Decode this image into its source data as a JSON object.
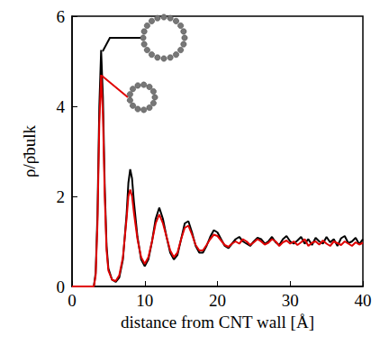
{
  "chart_data": {
    "type": "line",
    "x_label": "distance from CNT wall [Å]",
    "y_label": "ρ/ρ̄bulk",
    "x": [
      0,
      1,
      2,
      3,
      3.25,
      3.5,
      3.75,
      4,
      4.25,
      4.5,
      4.75,
      5,
      5.5,
      6,
      6.5,
      7,
      7.5,
      7.75,
      8,
      8.25,
      8.5,
      9,
      9.5,
      10,
      10.5,
      11,
      11.5,
      12,
      12.5,
      13,
      13.5,
      14,
      14.5,
      15,
      15.5,
      16,
      16.5,
      17,
      17.5,
      18,
      18.5,
      19,
      19.5,
      20,
      20.5,
      21,
      21.5,
      22,
      22.5,
      23,
      23.5,
      24,
      24.5,
      25,
      25.5,
      26,
      26.5,
      27,
      27.5,
      28,
      28.5,
      29,
      29.5,
      30,
      30.5,
      31,
      31.5,
      32,
      32.5,
      33,
      33.5,
      34,
      34.5,
      35,
      35.5,
      36,
      36.5,
      37,
      37.5,
      38,
      38.5,
      39,
      39.5,
      40
    ],
    "series": [
      {
        "color": "#000000",
        "values": [
          0,
          0,
          0,
          0,
          0.3,
          1.6,
          4.0,
          5.25,
          4.2,
          2.2,
          0.9,
          0.4,
          0.15,
          0.1,
          0.2,
          0.6,
          1.6,
          2.3,
          2.6,
          2.4,
          1.9,
          1.1,
          0.6,
          0.45,
          0.6,
          1.0,
          1.5,
          1.75,
          1.5,
          1.1,
          0.75,
          0.6,
          0.7,
          1.05,
          1.4,
          1.45,
          1.2,
          0.9,
          0.75,
          0.75,
          0.9,
          1.1,
          1.25,
          1.2,
          1.05,
          0.9,
          0.85,
          0.95,
          1.05,
          1.1,
          1.0,
          0.95,
          0.9,
          1.0,
          1.08,
          1.05,
          0.95,
          1.0,
          1.1,
          0.98,
          0.92,
          1.05,
          1.12,
          1.0,
          0.95,
          1.02,
          1.1,
          0.95,
          1.05,
          0.92,
          1.08,
          1.0,
          0.95,
          1.1,
          0.98,
          1.05,
          0.9,
          1.07,
          1.12,
          0.96,
          1.0,
          1.08,
          0.94,
          1.05
        ]
      },
      {
        "color": "#e00000",
        "values": [
          0,
          0,
          0,
          0,
          0.25,
          1.4,
          3.6,
          4.7,
          3.8,
          2.0,
          0.8,
          0.35,
          0.15,
          0.12,
          0.25,
          0.65,
          1.5,
          2.0,
          2.15,
          2.0,
          1.65,
          1.05,
          0.65,
          0.5,
          0.65,
          1.0,
          1.4,
          1.6,
          1.4,
          1.1,
          0.8,
          0.65,
          0.75,
          1.05,
          1.3,
          1.35,
          1.15,
          0.92,
          0.8,
          0.8,
          0.92,
          1.05,
          1.15,
          1.12,
          1.02,
          0.92,
          0.88,
          0.95,
          1.0,
          0.95,
          1.05,
          1.0,
          0.92,
          0.98,
          1.05,
          1.0,
          0.93,
          0.97,
          1.05,
          1.0,
          0.9,
          0.98,
          1.02,
          0.95,
          1.0,
          0.92,
          0.98,
          1.05,
          0.9,
          0.97,
          1.0,
          0.93,
          1.02,
          0.95,
          0.9,
          1.0,
          0.96,
          0.92,
          1.0,
          0.95,
          0.9,
          0.98,
          0.93,
          0.97
        ]
      }
    ],
    "xlim": [
      0,
      40
    ],
    "xticks": [
      0,
      10,
      20,
      30,
      40
    ],
    "ylim": [
      0,
      6
    ],
    "yticks": [
      0,
      2,
      4,
      6
    ],
    "grid": false
  }
}
